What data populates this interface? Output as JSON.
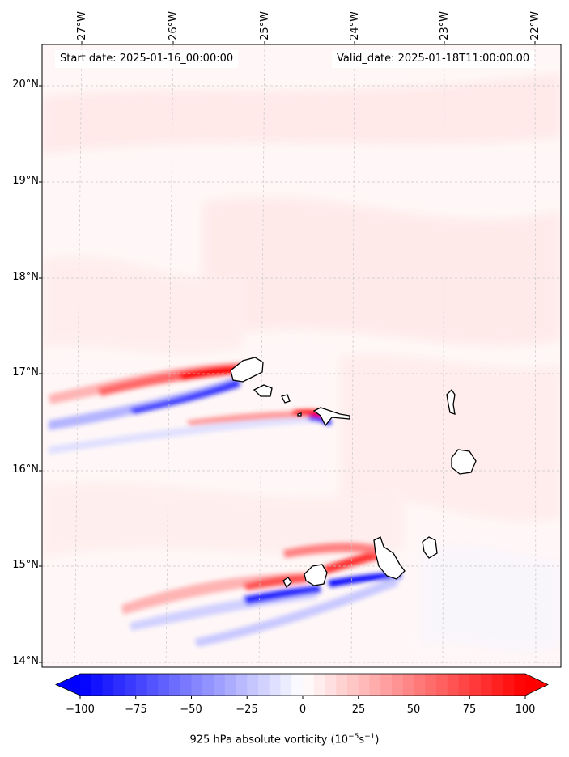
{
  "map": {
    "start_date": "Start date: 2025-01-16_00:00:00",
    "valid_date": "Valid_date: 2025-01-18T11:00:00.00",
    "lon_labels": [
      "27°W",
      "26°W",
      "25°W",
      "24°W",
      "23°W",
      "22°W"
    ],
    "lat_labels": [
      "20°N",
      "19°N",
      "18°N",
      "17°N",
      "16°N",
      "15°N",
      "14°N"
    ],
    "colors": {
      "positive": "#ff0000",
      "negative": "#0000ff",
      "background": "#fff7f7",
      "coast": "#000000",
      "grid": "#c8c8c8"
    }
  },
  "colorbar": {
    "label_prefix": "925 hPa absolute vorticity (10",
    "label_exp1": "−5",
    "label_mid": "s",
    "label_exp2": "−1",
    "label_suffix": ")",
    "ticks": [
      "−100",
      "−75",
      "−50",
      "−25",
      "0",
      "25",
      "50",
      "75",
      "100"
    ],
    "min": -100,
    "max": 100,
    "levels": 40
  }
}
